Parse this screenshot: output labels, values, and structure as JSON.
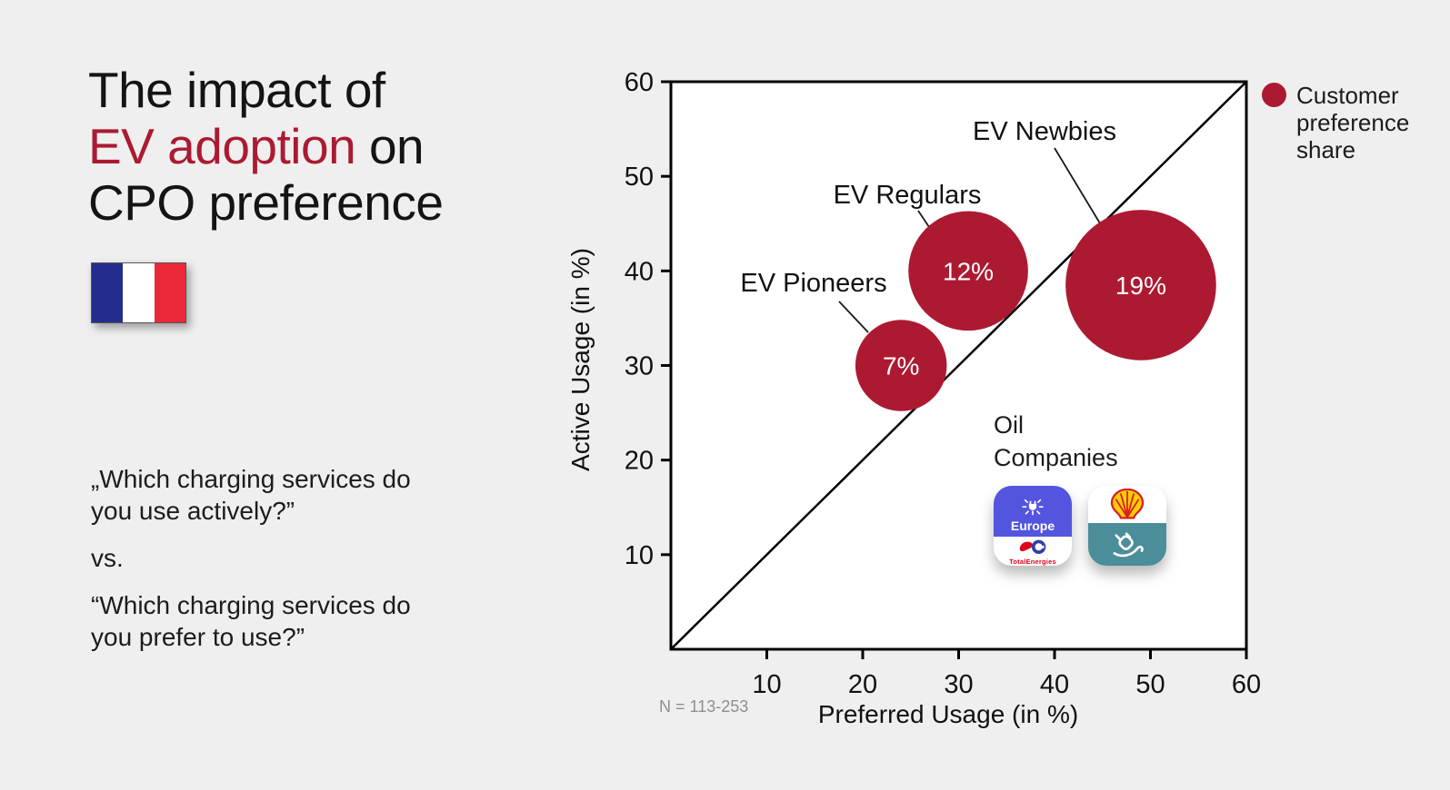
{
  "page": {
    "background_color": "#EFEFEF",
    "accent_color": "#AC1A32"
  },
  "title": {
    "line1": "The impact of",
    "accent": "EV adoption",
    "line2_rest": " on",
    "line3": "CPO preference",
    "accent_color": "#AC1A32"
  },
  "flag": {
    "country": "France",
    "colors": [
      "#232E8C",
      "#FFFFFF",
      "#EA2839"
    ]
  },
  "questions": {
    "q1": "„Which charging services do you use actively?”",
    "vs": "vs.",
    "q2": "“Which charging services do you prefer to use?”"
  },
  "legend": {
    "label": "Customer preference share",
    "dot_color": "#AC1A32"
  },
  "oil": {
    "label": "Oil Companies",
    "icons": [
      {
        "name": "TotalEnergies Charge app",
        "label_top": "Europe",
        "label_bottom": "TotalEnergies"
      },
      {
        "name": "Shell Recharge app"
      }
    ]
  },
  "chart_data": {
    "type": "scatter",
    "subtype": "bubble",
    "title": "",
    "xlabel": "Preferred Usage (in %)",
    "ylabel": "Active Usage (in %)",
    "xlim": [
      0,
      60
    ],
    "ylim": [
      0,
      60
    ],
    "x_ticks": [
      10,
      20,
      30,
      40,
      50,
      60
    ],
    "y_ticks": [
      10,
      20,
      30,
      40,
      50,
      60
    ],
    "grid": false,
    "reference_line": "y = x diagonal from (0,0) to (60,60)",
    "bubble_color": "#AC1A32",
    "bubble_size_meaning": "Customer preference share",
    "bubbles": [
      {
        "label": "EV Pioneers",
        "preferred_usage_pct": 24,
        "active_usage_pct": 30,
        "share_pct": 7,
        "value_label": "7%"
      },
      {
        "label": "EV Regulars",
        "preferred_usage_pct": 31,
        "active_usage_pct": 40,
        "share_pct": 12,
        "value_label": "12%"
      },
      {
        "label": "EV Newbies",
        "preferred_usage_pct": 49,
        "active_usage_pct": 38.5,
        "share_pct": 19,
        "value_label": "19%"
      }
    ],
    "annotation": "Oil Companies",
    "sample_note": "N = 113-253",
    "legend_label": "Customer preference share",
    "legend_position": "top-right"
  }
}
